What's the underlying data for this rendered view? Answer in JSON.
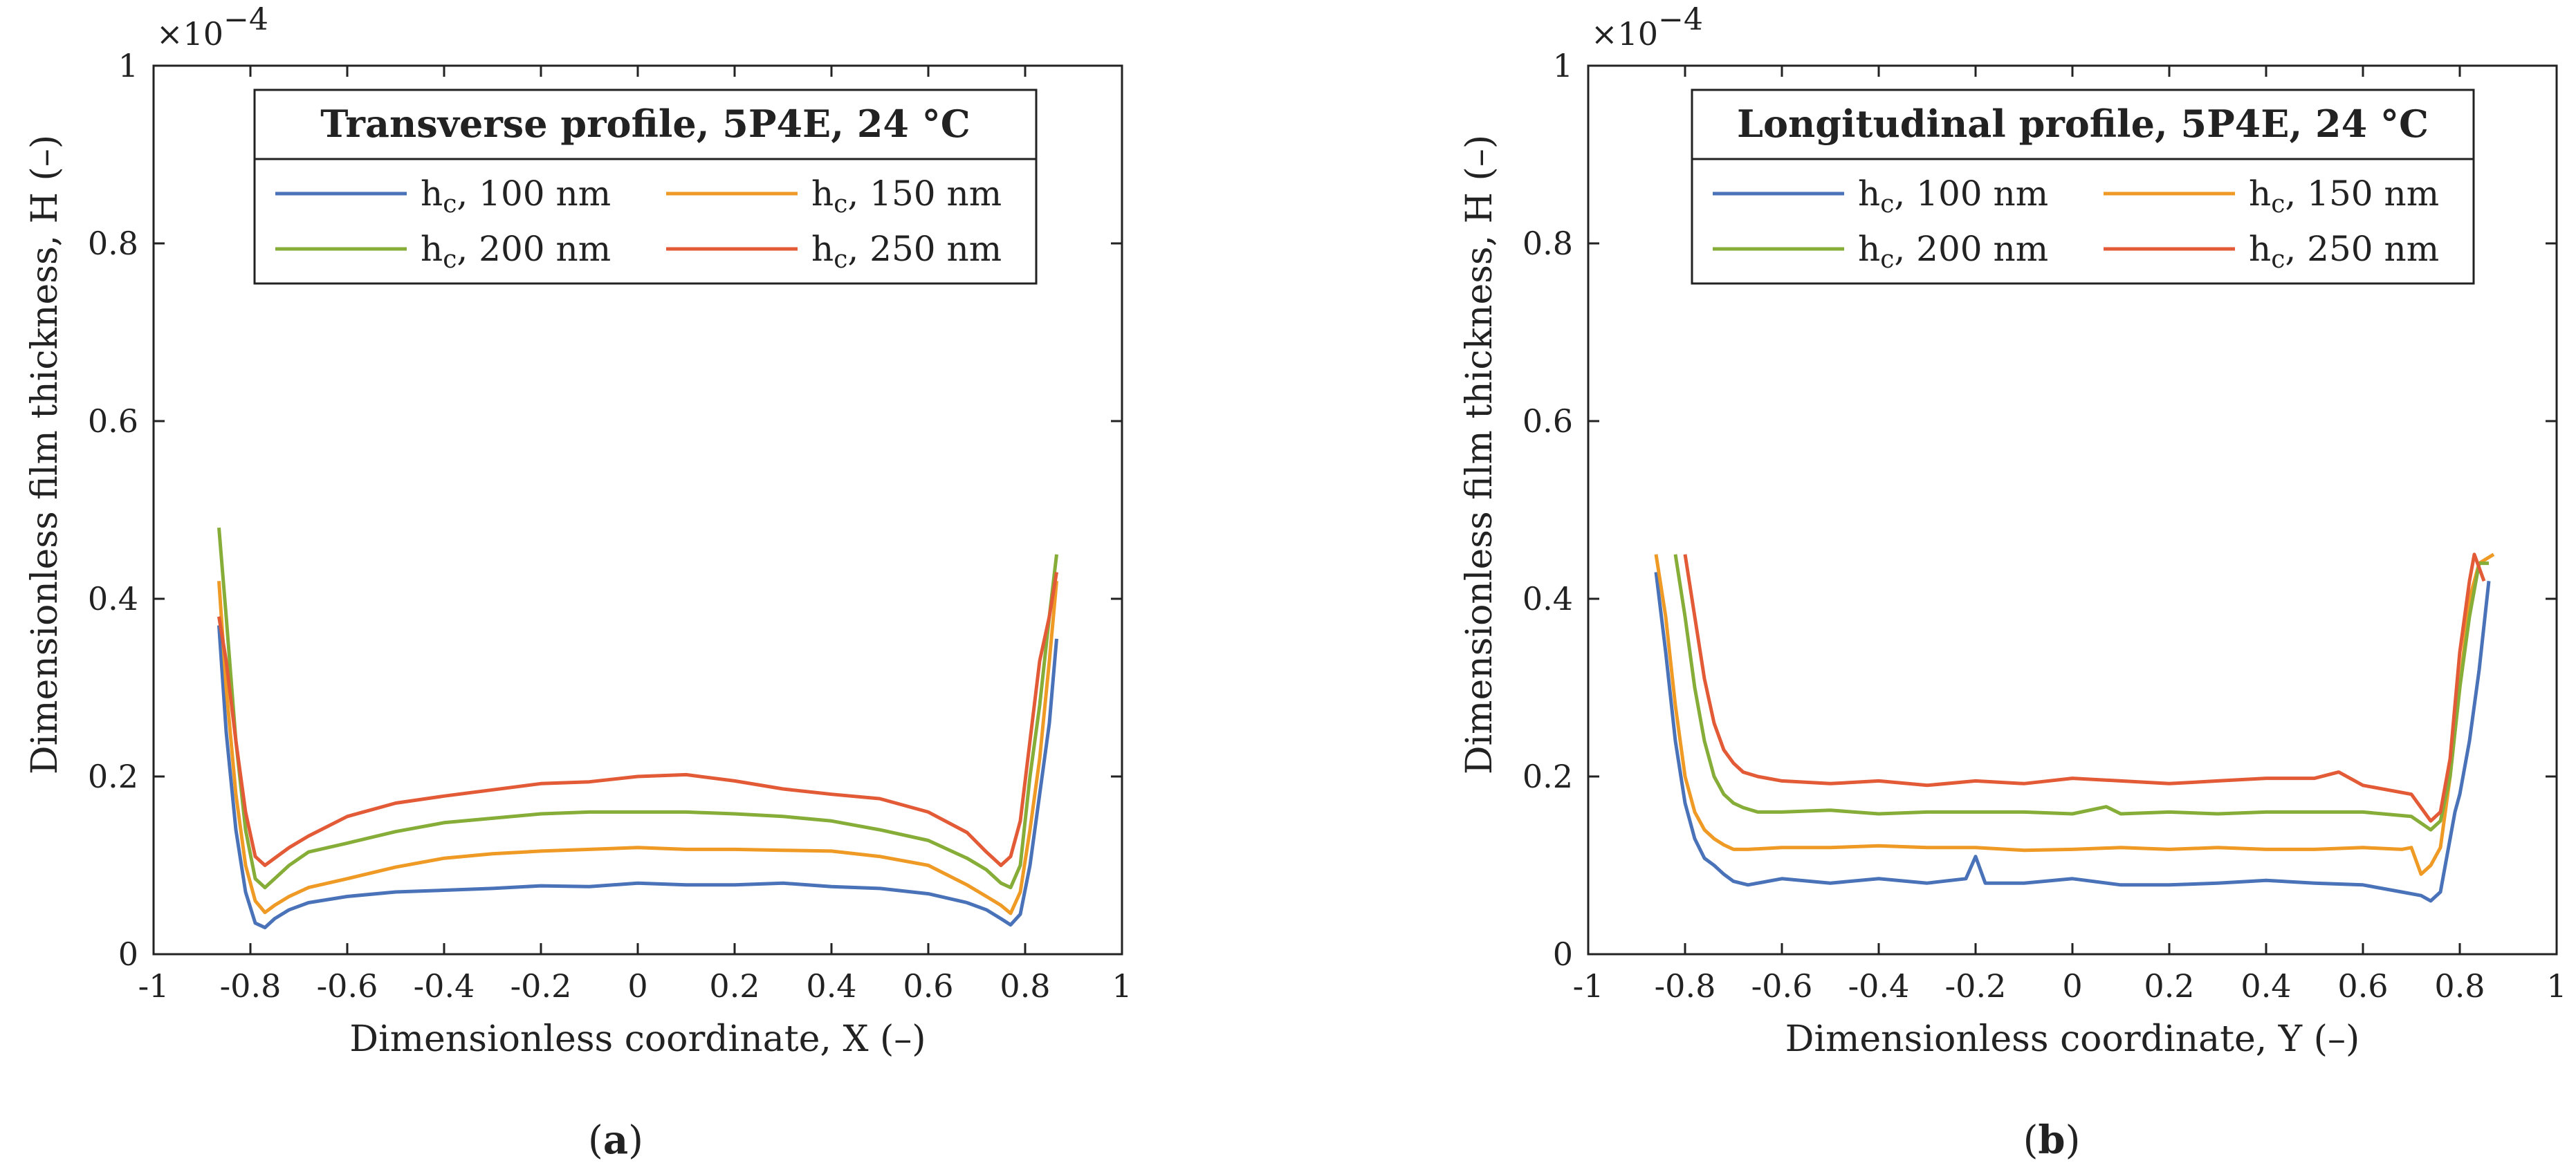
{
  "chart_data": [
    {
      "type": "line",
      "title": "Transverse profile, 5P4E, 24 °C",
      "xlabel": "Dimensionless coordinate, X (–)",
      "ylabel": "Dimensionless film thickness, H (–)",
      "y_multiplier": "×10",
      "y_multiplier_exp": "−4",
      "xlim": [
        -1,
        1
      ],
      "ylim": [
        0,
        1
      ],
      "x_ticks": [
        "-1",
        "-0.8",
        "-0.6",
        "-0.4",
        "-0.2",
        "0",
        "0.2",
        "0.4",
        "0.6",
        "0.8",
        "1"
      ],
      "y_ticks": [
        "0",
        "0.2",
        "0.4",
        "0.6",
        "0.8",
        "1"
      ],
      "legend_position": "top-center",
      "caption_mid": "a",
      "series": [
        {
          "label_main": "h",
          "label_sub": "c",
          "label_rest": ", 100 nm",
          "color": "#4a72b8",
          "x": [
            -0.865,
            -0.85,
            -0.83,
            -0.81,
            -0.79,
            -0.77,
            -0.75,
            -0.72,
            -0.68,
            -0.6,
            -0.5,
            -0.4,
            -0.3,
            -0.2,
            -0.1,
            0,
            0.1,
            0.2,
            0.3,
            0.4,
            0.5,
            0.6,
            0.68,
            0.72,
            0.75,
            0.77,
            0.79,
            0.81,
            0.83,
            0.85,
            0.865
          ],
          "y": [
            0.37,
            0.25,
            0.14,
            0.07,
            0.035,
            0.03,
            0.04,
            0.05,
            0.058,
            0.065,
            0.07,
            0.072,
            0.074,
            0.077,
            0.076,
            0.08,
            0.078,
            0.078,
            0.08,
            0.076,
            0.074,
            0.068,
            0.058,
            0.05,
            0.04,
            0.033,
            0.045,
            0.1,
            0.18,
            0.26,
            0.355
          ]
        },
        {
          "label_main": "h",
          "label_sub": "c",
          "label_rest": ", 150 nm",
          "color": "#ee9a25",
          "x": [
            -0.865,
            -0.85,
            -0.83,
            -0.81,
            -0.79,
            -0.77,
            -0.75,
            -0.72,
            -0.68,
            -0.6,
            -0.5,
            -0.4,
            -0.3,
            -0.2,
            -0.1,
            0,
            0.1,
            0.2,
            0.3,
            0.4,
            0.5,
            0.6,
            0.68,
            0.72,
            0.75,
            0.77,
            0.79,
            0.81,
            0.83,
            0.85,
            0.865
          ],
          "y": [
            0.42,
            0.3,
            0.18,
            0.1,
            0.06,
            0.047,
            0.055,
            0.065,
            0.075,
            0.085,
            0.098,
            0.108,
            0.113,
            0.116,
            0.118,
            0.12,
            0.118,
            0.118,
            0.117,
            0.116,
            0.11,
            0.1,
            0.078,
            0.065,
            0.055,
            0.046,
            0.07,
            0.14,
            0.22,
            0.33,
            0.42
          ]
        },
        {
          "label_main": "h",
          "label_sub": "c",
          "label_rest": ", 200 nm",
          "color": "#86ad38",
          "x": [
            -0.865,
            -0.85,
            -0.83,
            -0.81,
            -0.79,
            -0.77,
            -0.75,
            -0.72,
            -0.68,
            -0.6,
            -0.5,
            -0.4,
            -0.3,
            -0.2,
            -0.1,
            0,
            0.1,
            0.2,
            0.3,
            0.4,
            0.5,
            0.6,
            0.68,
            0.72,
            0.75,
            0.77,
            0.79,
            0.81,
            0.83,
            0.85,
            0.865
          ],
          "y": [
            0.48,
            0.38,
            0.24,
            0.14,
            0.085,
            0.075,
            0.085,
            0.1,
            0.115,
            0.125,
            0.138,
            0.148,
            0.153,
            0.158,
            0.16,
            0.16,
            0.16,
            0.158,
            0.155,
            0.15,
            0.14,
            0.128,
            0.108,
            0.095,
            0.08,
            0.075,
            0.1,
            0.2,
            0.28,
            0.38,
            0.45
          ]
        },
        {
          "label_main": "h",
          "label_sub": "c",
          "label_rest": ", 250 nm",
          "color": "#e35a36",
          "x": [
            -0.865,
            -0.85,
            -0.83,
            -0.81,
            -0.79,
            -0.77,
            -0.75,
            -0.72,
            -0.68,
            -0.6,
            -0.5,
            -0.4,
            -0.3,
            -0.2,
            -0.1,
            0,
            0.1,
            0.2,
            0.3,
            0.4,
            0.5,
            0.6,
            0.68,
            0.72,
            0.75,
            0.77,
            0.79,
            0.81,
            0.83,
            0.85,
            0.865
          ],
          "y": [
            0.38,
            0.33,
            0.24,
            0.16,
            0.11,
            0.1,
            0.108,
            0.12,
            0.133,
            0.155,
            0.17,
            0.178,
            0.185,
            0.192,
            0.194,
            0.2,
            0.202,
            0.195,
            0.186,
            0.18,
            0.175,
            0.16,
            0.137,
            0.115,
            0.1,
            0.11,
            0.15,
            0.24,
            0.33,
            0.38,
            0.43
          ]
        }
      ]
    },
    {
      "type": "line",
      "title": "Longitudinal profile, 5P4E, 24 °C",
      "xlabel": "Dimensionless coordinate, Y (–)",
      "ylabel": "Dimensionless film thickness, H (–)",
      "y_multiplier": "×10",
      "y_multiplier_exp": "−4",
      "xlim": [
        -1,
        1
      ],
      "ylim": [
        0,
        1
      ],
      "x_ticks": [
        "-1",
        "-0.8",
        "-0.6",
        "-0.4",
        "-0.2",
        "0",
        "0.2",
        "0.4",
        "0.6",
        "0.8",
        "1"
      ],
      "y_ticks": [
        "0",
        "0.2",
        "0.4",
        "0.6",
        "0.8",
        "1"
      ],
      "legend_position": "top-center",
      "caption_mid": "b",
      "series": [
        {
          "label_main": "h",
          "label_sub": "c",
          "label_rest": ", 100 nm",
          "color": "#4a72b8",
          "x": [
            -0.86,
            -0.84,
            -0.82,
            -0.8,
            -0.78,
            -0.76,
            -0.74,
            -0.72,
            -0.7,
            -0.67,
            -0.6,
            -0.5,
            -0.4,
            -0.3,
            -0.22,
            -0.2,
            -0.18,
            -0.1,
            0,
            0.1,
            0.2,
            0.3,
            0.4,
            0.5,
            0.6,
            0.68,
            0.72,
            0.74,
            0.76,
            0.78,
            0.79,
            0.8,
            0.82,
            0.84,
            0.86
          ],
          "y": [
            0.43,
            0.34,
            0.24,
            0.17,
            0.13,
            0.108,
            0.1,
            0.09,
            0.082,
            0.078,
            0.085,
            0.08,
            0.085,
            0.08,
            0.085,
            0.11,
            0.08,
            0.08,
            0.085,
            0.078,
            0.078,
            0.08,
            0.083,
            0.08,
            0.078,
            0.07,
            0.066,
            0.06,
            0.07,
            0.13,
            0.16,
            0.18,
            0.24,
            0.32,
            0.42
          ]
        },
        {
          "label_main": "h",
          "label_sub": "c",
          "label_rest": ", 150 nm",
          "color": "#ee9a25",
          "x": [
            -0.86,
            -0.84,
            -0.82,
            -0.8,
            -0.78,
            -0.76,
            -0.74,
            -0.72,
            -0.7,
            -0.67,
            -0.6,
            -0.5,
            -0.4,
            -0.3,
            -0.2,
            -0.1,
            0,
            0.1,
            0.2,
            0.3,
            0.4,
            0.5,
            0.6,
            0.68,
            0.7,
            0.72,
            0.74,
            0.76,
            0.78,
            0.8,
            0.82,
            0.84,
            0.87
          ],
          "y": [
            0.45,
            0.38,
            0.28,
            0.2,
            0.16,
            0.14,
            0.13,
            0.123,
            0.118,
            0.118,
            0.12,
            0.12,
            0.122,
            0.12,
            0.12,
            0.117,
            0.118,
            0.12,
            0.118,
            0.12,
            0.118,
            0.118,
            0.12,
            0.118,
            0.12,
            0.09,
            0.1,
            0.12,
            0.2,
            0.3,
            0.4,
            0.44,
            0.45
          ]
        },
        {
          "label_main": "h",
          "label_sub": "c",
          "label_rest": ", 200 nm",
          "color": "#86ad38",
          "x": [
            -0.82,
            -0.8,
            -0.78,
            -0.76,
            -0.74,
            -0.72,
            -0.7,
            -0.68,
            -0.65,
            -0.6,
            -0.5,
            -0.4,
            -0.3,
            -0.2,
            -0.1,
            0,
            0.07,
            0.1,
            0.2,
            0.3,
            0.4,
            0.5,
            0.6,
            0.7,
            0.74,
            0.76,
            0.78,
            0.8,
            0.82,
            0.84,
            0.86
          ],
          "y": [
            0.45,
            0.38,
            0.3,
            0.24,
            0.2,
            0.18,
            0.17,
            0.165,
            0.16,
            0.16,
            0.162,
            0.158,
            0.16,
            0.16,
            0.16,
            0.158,
            0.166,
            0.158,
            0.16,
            0.158,
            0.16,
            0.16,
            0.16,
            0.155,
            0.14,
            0.15,
            0.2,
            0.3,
            0.38,
            0.44,
            0.44
          ]
        },
        {
          "label_main": "h",
          "label_sub": "c",
          "label_rest": ", 250 nm",
          "color": "#e35a36",
          "x": [
            -0.8,
            -0.78,
            -0.76,
            -0.74,
            -0.72,
            -0.7,
            -0.68,
            -0.65,
            -0.6,
            -0.5,
            -0.4,
            -0.3,
            -0.2,
            -0.1,
            0,
            0.1,
            0.2,
            0.3,
            0.4,
            0.5,
            0.55,
            0.6,
            0.7,
            0.74,
            0.76,
            0.78,
            0.8,
            0.82,
            0.83,
            0.85
          ],
          "y": [
            0.45,
            0.38,
            0.31,
            0.26,
            0.23,
            0.215,
            0.205,
            0.2,
            0.195,
            0.192,
            0.195,
            0.19,
            0.195,
            0.192,
            0.198,
            0.195,
            0.192,
            0.195,
            0.198,
            0.198,
            0.205,
            0.19,
            0.18,
            0.15,
            0.16,
            0.22,
            0.34,
            0.42,
            0.45,
            0.42
          ]
        }
      ]
    }
  ]
}
